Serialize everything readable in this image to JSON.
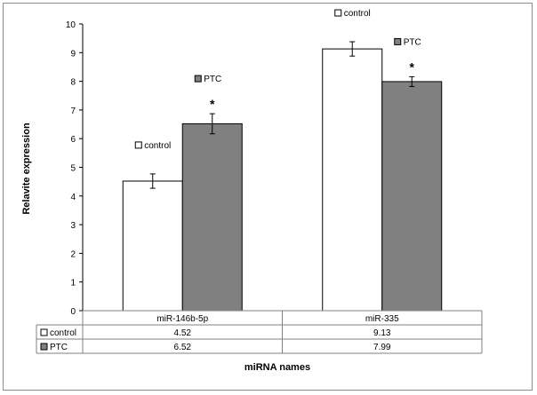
{
  "chart_data": {
    "type": "bar",
    "categories": [
      "miR-146b-5p",
      "miR-335"
    ],
    "series": [
      {
        "name": "control",
        "values": [
          4.52,
          9.13
        ],
        "errors": [
          0.25,
          0.25
        ],
        "color": "#ffffff",
        "significant": [
          false,
          false
        ]
      },
      {
        "name": "PTC",
        "values": [
          6.52,
          7.99
        ],
        "errors": [
          0.35,
          0.17
        ],
        "color": "#808080",
        "significant": [
          true,
          true
        ]
      }
    ],
    "ylabel": "Relavite expression",
    "xlabel": "miRNA names",
    "ylim": [
      0,
      10
    ],
    "yticks": [
      0,
      1,
      2,
      3,
      4,
      5,
      6,
      7,
      8,
      9,
      10
    ],
    "table_values": [
      [
        "4.52",
        "9.13"
      ],
      [
        "6.52",
        "7.99"
      ]
    ],
    "significance_marker": "*",
    "grid": false,
    "legend": "inline-above-bars"
  }
}
